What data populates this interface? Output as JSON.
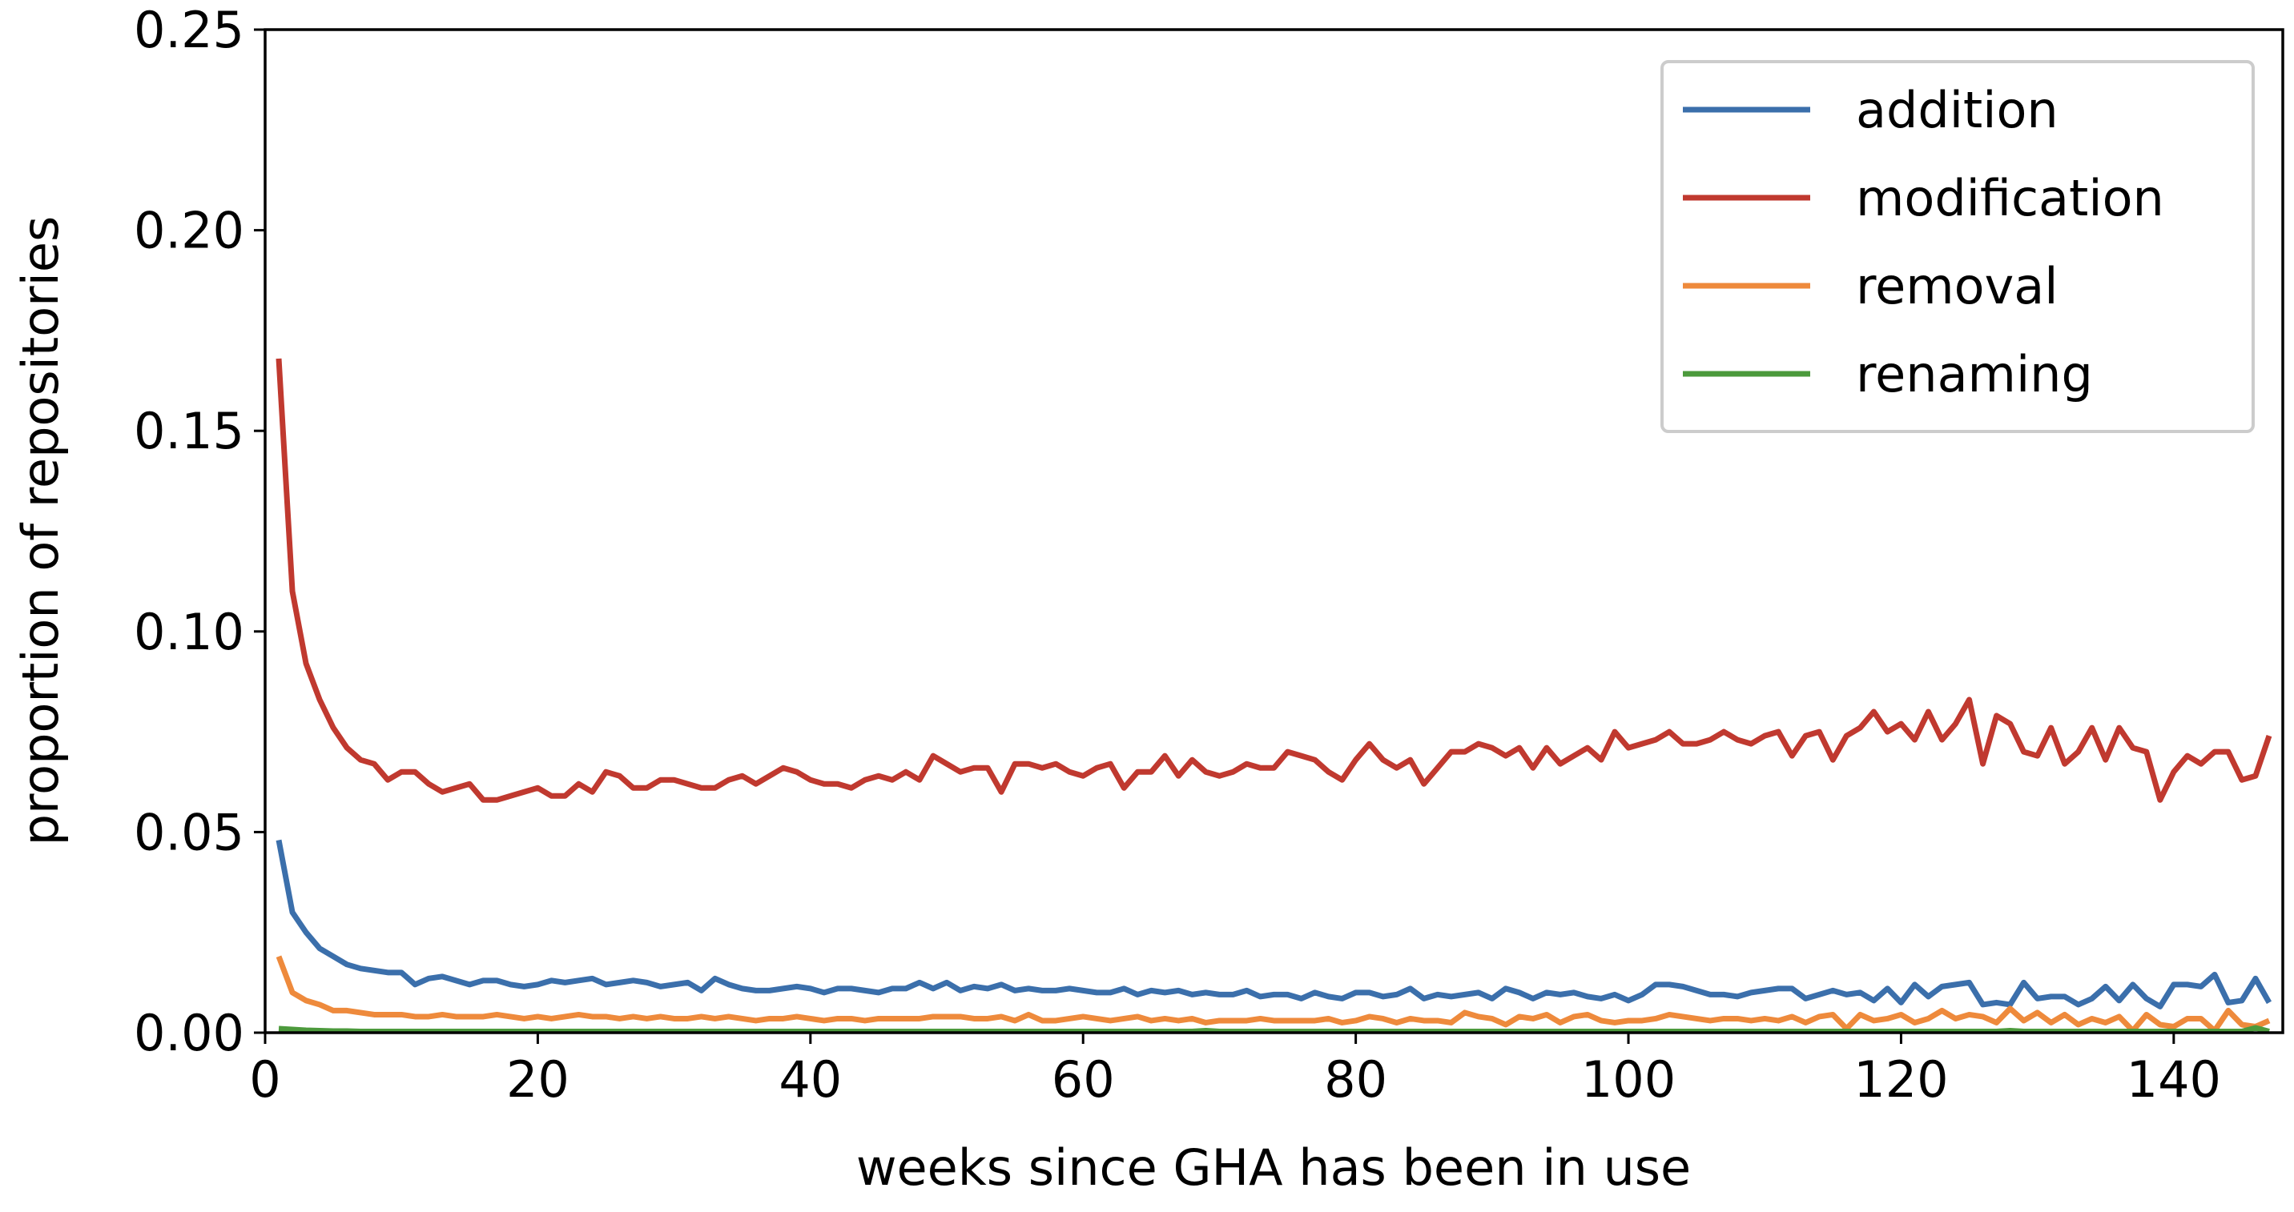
{
  "chart_data": {
    "type": "line",
    "x_label": "weeks since GHA has been in use",
    "y_label": "proportion of repositories",
    "xlim": [
      0,
      148
    ],
    "ylim": [
      0,
      0.25
    ],
    "xticks": [
      0,
      20,
      40,
      60,
      80,
      100,
      120,
      140
    ],
    "yticks": [
      {
        "value": 0,
        "label": "0.00"
      },
      {
        "value": 0.05,
        "label": "0.05"
      },
      {
        "value": 0.1,
        "label": "0.10"
      },
      {
        "value": 0.15,
        "label": "0.15"
      },
      {
        "value": 0.2,
        "label": "0.20"
      },
      {
        "value": 0.25,
        "label": "0.25"
      }
    ],
    "legend": "upper right",
    "x": [
      1,
      2,
      3,
      4,
      5,
      6,
      7,
      8,
      9,
      10,
      11,
      12,
      13,
      14,
      15,
      16,
      17,
      18,
      19,
      20,
      21,
      22,
      23,
      24,
      25,
      26,
      27,
      28,
      29,
      30,
      31,
      32,
      33,
      34,
      35,
      36,
      37,
      38,
      39,
      40,
      41,
      42,
      43,
      44,
      45,
      46,
      47,
      48,
      49,
      50,
      51,
      52,
      53,
      54,
      55,
      56,
      57,
      58,
      59,
      60,
      61,
      62,
      63,
      64,
      65,
      66,
      67,
      68,
      69,
      70,
      71,
      72,
      73,
      74,
      75,
      76,
      77,
      78,
      79,
      80,
      81,
      82,
      83,
      84,
      85,
      86,
      87,
      88,
      89,
      90,
      91,
      92,
      93,
      94,
      95,
      96,
      97,
      98,
      99,
      100,
      101,
      102,
      103,
      104,
      105,
      106,
      107,
      108,
      109,
      110,
      111,
      112,
      113,
      114,
      115,
      116,
      117,
      118,
      119,
      120,
      121,
      122,
      123,
      124,
      125,
      126,
      127,
      128,
      129,
      130,
      131,
      132,
      133,
      134,
      135,
      136,
      137,
      138,
      139,
      140,
      141,
      142,
      143,
      144,
      145,
      146,
      147
    ],
    "series": [
      {
        "name": "addition",
        "color": "#3b6fab",
        "values": [
          0.048,
          0.03,
          0.025,
          0.021,
          0.019,
          0.017,
          0.016,
          0.0155,
          0.015,
          0.015,
          0.012,
          0.0135,
          0.014,
          0.013,
          0.012,
          0.013,
          0.013,
          0.012,
          0.0115,
          0.012,
          0.013,
          0.0125,
          0.013,
          0.0135,
          0.012,
          0.0125,
          0.013,
          0.0125,
          0.0115,
          0.012,
          0.0125,
          0.0105,
          0.0135,
          0.012,
          0.011,
          0.0105,
          0.0105,
          0.011,
          0.0115,
          0.011,
          0.01,
          0.011,
          0.011,
          0.0105,
          0.01,
          0.011,
          0.011,
          0.0125,
          0.011,
          0.0125,
          0.0105,
          0.0115,
          0.011,
          0.012,
          0.0105,
          0.011,
          0.0105,
          0.0105,
          0.011,
          0.0105,
          0.01,
          0.01,
          0.011,
          0.0095,
          0.0105,
          0.01,
          0.0105,
          0.0095,
          0.01,
          0.0095,
          0.0095,
          0.0105,
          0.009,
          0.0095,
          0.0095,
          0.0085,
          0.01,
          0.009,
          0.0085,
          0.01,
          0.01,
          0.009,
          0.0095,
          0.011,
          0.0085,
          0.0095,
          0.009,
          0.0095,
          0.01,
          0.0085,
          0.011,
          0.01,
          0.0085,
          0.01,
          0.0095,
          0.01,
          0.009,
          0.0085,
          0.0095,
          0.008,
          0.0095,
          0.012,
          0.012,
          0.0115,
          0.0105,
          0.0095,
          0.0095,
          0.009,
          0.01,
          0.0105,
          0.011,
          0.011,
          0.0085,
          0.0095,
          0.0105,
          0.0095,
          0.01,
          0.008,
          0.011,
          0.0075,
          0.012,
          0.009,
          0.0115,
          0.012,
          0.0125,
          0.007,
          0.0075,
          0.007,
          0.0125,
          0.0085,
          0.009,
          0.009,
          0.007,
          0.0085,
          0.0115,
          0.008,
          0.012,
          0.0085,
          0.0065,
          0.012,
          0.012,
          0.0115,
          0.0145,
          0.0075,
          0.008,
          0.0135,
          0.0075
        ]
      },
      {
        "name": "modification",
        "color": "#c0392f",
        "values": [
          0.168,
          0.11,
          0.092,
          0.083,
          0.076,
          0.071,
          0.068,
          0.067,
          0.063,
          0.065,
          0.065,
          0.062,
          0.06,
          0.061,
          0.062,
          0.058,
          0.058,
          0.059,
          0.06,
          0.061,
          0.059,
          0.059,
          0.062,
          0.06,
          0.065,
          0.064,
          0.061,
          0.061,
          0.063,
          0.063,
          0.062,
          0.061,
          0.061,
          0.063,
          0.064,
          0.062,
          0.064,
          0.066,
          0.065,
          0.063,
          0.062,
          0.062,
          0.061,
          0.063,
          0.064,
          0.063,
          0.065,
          0.063,
          0.069,
          0.067,
          0.065,
          0.066,
          0.066,
          0.06,
          0.067,
          0.067,
          0.066,
          0.067,
          0.065,
          0.064,
          0.066,
          0.067,
          0.061,
          0.065,
          0.065,
          0.069,
          0.064,
          0.068,
          0.065,
          0.064,
          0.065,
          0.067,
          0.066,
          0.066,
          0.07,
          0.069,
          0.068,
          0.065,
          0.063,
          0.068,
          0.072,
          0.068,
          0.066,
          0.068,
          0.062,
          0.066,
          0.07,
          0.07,
          0.072,
          0.071,
          0.069,
          0.071,
          0.066,
          0.071,
          0.067,
          0.069,
          0.071,
          0.068,
          0.075,
          0.071,
          0.072,
          0.073,
          0.075,
          0.072,
          0.072,
          0.073,
          0.075,
          0.073,
          0.072,
          0.074,
          0.075,
          0.069,
          0.074,
          0.075,
          0.068,
          0.074,
          0.076,
          0.08,
          0.075,
          0.077,
          0.073,
          0.08,
          0.073,
          0.077,
          0.083,
          0.067,
          0.079,
          0.077,
          0.07,
          0.069,
          0.076,
          0.067,
          0.07,
          0.076,
          0.068,
          0.076,
          0.071,
          0.07,
          0.058,
          0.065,
          0.069,
          0.067,
          0.07,
          0.07,
          0.063,
          0.064,
          0.074
        ]
      },
      {
        "name": "removal",
        "color": "#ee8a3c",
        "values": [
          0.019,
          0.01,
          0.008,
          0.007,
          0.0055,
          0.0055,
          0.005,
          0.0045,
          0.0045,
          0.0045,
          0.004,
          0.004,
          0.0045,
          0.004,
          0.004,
          0.004,
          0.0045,
          0.004,
          0.0035,
          0.004,
          0.0035,
          0.004,
          0.0045,
          0.004,
          0.004,
          0.0035,
          0.004,
          0.0035,
          0.004,
          0.0035,
          0.0035,
          0.004,
          0.0035,
          0.004,
          0.0035,
          0.003,
          0.0035,
          0.0035,
          0.004,
          0.0035,
          0.003,
          0.0035,
          0.0035,
          0.003,
          0.0035,
          0.0035,
          0.0035,
          0.0035,
          0.004,
          0.004,
          0.004,
          0.0035,
          0.0035,
          0.004,
          0.003,
          0.0045,
          0.003,
          0.003,
          0.0035,
          0.004,
          0.0035,
          0.003,
          0.0035,
          0.004,
          0.003,
          0.0035,
          0.003,
          0.0035,
          0.0025,
          0.003,
          0.003,
          0.003,
          0.0035,
          0.003,
          0.003,
          0.003,
          0.003,
          0.0035,
          0.0025,
          0.003,
          0.004,
          0.0035,
          0.0025,
          0.0035,
          0.003,
          0.003,
          0.0025,
          0.005,
          0.004,
          0.0035,
          0.002,
          0.004,
          0.0035,
          0.0045,
          0.0025,
          0.004,
          0.0045,
          0.003,
          0.0025,
          0.003,
          0.003,
          0.0035,
          0.0045,
          0.004,
          0.0035,
          0.003,
          0.0035,
          0.0035,
          0.003,
          0.0035,
          0.003,
          0.004,
          0.0025,
          0.004,
          0.0045,
          0.001,
          0.0045,
          0.003,
          0.0035,
          0.0045,
          0.0025,
          0.0035,
          0.0055,
          0.0035,
          0.0045,
          0.004,
          0.0025,
          0.006,
          0.003,
          0.005,
          0.0025,
          0.0045,
          0.002,
          0.0035,
          0.0025,
          0.004,
          0.0005,
          0.0045,
          0.002,
          0.0015,
          0.0035,
          0.0035,
          0.0005,
          0.0055,
          0.002,
          0.0015,
          0.003
        ]
      },
      {
        "name": "renaming",
        "color": "#4c9a3c",
        "values": [
          0.001,
          0.0008,
          0.0006,
          0.0005,
          0.0004,
          0.0004,
          0.0003,
          0.0003,
          0.0003,
          0.0003,
          0.0003,
          0.0003,
          0.0003,
          0.0003,
          0.0003,
          0.0003,
          0.0003,
          0.0003,
          0.0003,
          0.0003,
          0.0003,
          0.0003,
          0.0003,
          0.0003,
          0.0003,
          0.0003,
          0.0003,
          0.0003,
          0.0003,
          0.0003,
          0.0003,
          0.0003,
          0.0003,
          0.0003,
          0.0003,
          0.0003,
          0.0003,
          0.0003,
          0.0003,
          0.0003,
          0.0003,
          0.0003,
          0.0003,
          0.0003,
          0.0003,
          0.0003,
          0.0003,
          0.0003,
          0.0003,
          0.0003,
          0.0003,
          0.0003,
          0.0003,
          0.0003,
          0.0003,
          0.0003,
          0.0003,
          0.0003,
          0.0003,
          0.0003,
          0.0003,
          0.0003,
          0.0003,
          0.0003,
          0.0003,
          0.0003,
          0.0003,
          0.0003,
          0.0005,
          0.0003,
          0.0003,
          0.0003,
          0.0003,
          0.0003,
          0.0003,
          0.0003,
          0.0003,
          0.0003,
          0.0003,
          0.0003,
          0.0003,
          0.0003,
          0.0003,
          0.0003,
          0.0003,
          0.0003,
          0.0003,
          0.0003,
          0.0003,
          0.0003,
          0.0003,
          0.0003,
          0.0003,
          0.0003,
          0.0003,
          0.0003,
          0.0003,
          0.0003,
          0.0003,
          0.0003,
          0.0003,
          0.0003,
          0.0003,
          0.0003,
          0.0003,
          0.0003,
          0.0003,
          0.0003,
          0.0003,
          0.0003,
          0.0003,
          0.0003,
          0.0003,
          0.0003,
          0.0003,
          0.0003,
          0.0003,
          0.0003,
          0.0003,
          0.0003,
          0.0003,
          0.0003,
          0.0003,
          0.0003,
          0.0003,
          0.0003,
          0.0003,
          0.0005,
          0.0003,
          0.0003,
          0.0003,
          0.0003,
          0.0003,
          0.0003,
          0.0003,
          0.0003,
          0.0003,
          0.0003,
          0.0003,
          0.0003,
          0.0003,
          0.0003,
          0.0003,
          0.0003,
          0.0003,
          0.0012,
          0.0003
        ]
      }
    ]
  }
}
